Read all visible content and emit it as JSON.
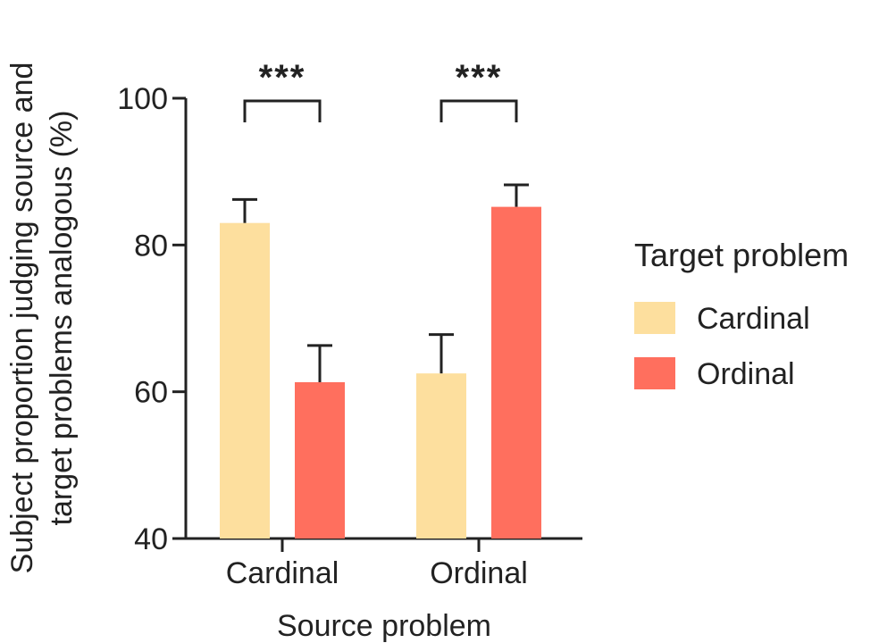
{
  "chart_data": {
    "type": "bar",
    "categories": [
      "Cardinal",
      "Ordinal"
    ],
    "series": [
      {
        "name": "Cardinal",
        "color": "#FDDF9E",
        "values": [
          83,
          62.5
        ],
        "errors": [
          3.2,
          5.3
        ]
      },
      {
        "name": "Ordinal",
        "color": "#FF6F5E",
        "values": [
          61.3,
          85.2
        ],
        "errors": [
          5.0,
          3.0
        ]
      }
    ],
    "xlabel": "Source problem",
    "ylabel_lines": [
      "Subject proportion judging source and",
      "target problems analogous (%)"
    ],
    "ylim": [
      40,
      100
    ],
    "yticks": [
      40,
      60,
      80,
      100
    ],
    "legend": {
      "title": "Target problem",
      "placement": "right"
    },
    "significance": [
      "***",
      "***"
    ],
    "grid": false
  }
}
